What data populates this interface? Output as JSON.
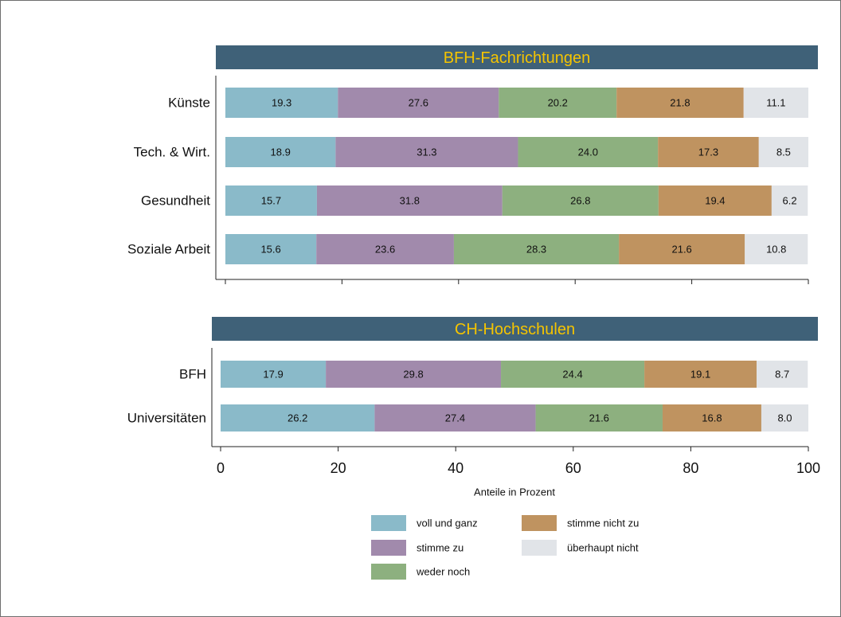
{
  "chart_data": [
    {
      "type": "bar",
      "orientation": "horizontal",
      "stacked": true,
      "title": "BFH-Fachrichtungen",
      "categories": [
        "Künste",
        "Tech. & Wirt.",
        "Gesundheit",
        "Soziale Arbeit"
      ],
      "series": [
        {
          "name": "voll und ganz",
          "values": [
            19.3,
            18.9,
            15.7,
            15.6
          ]
        },
        {
          "name": "stimme zu",
          "values": [
            27.6,
            31.3,
            31.8,
            23.6
          ]
        },
        {
          "name": "weder noch",
          "values": [
            20.2,
            24.0,
            26.8,
            28.3
          ]
        },
        {
          "name": "stimme nicht zu",
          "values": [
            21.8,
            17.3,
            19.4,
            21.6
          ]
        },
        {
          "name": "überhaupt nicht",
          "values": [
            11.1,
            8.5,
            6.2,
            10.8
          ]
        }
      ],
      "xlim": [
        0,
        100
      ]
    },
    {
      "type": "bar",
      "orientation": "horizontal",
      "stacked": true,
      "title": "CH-Hochschulen",
      "categories": [
        "BFH",
        "Universitäten"
      ],
      "series": [
        {
          "name": "voll und ganz",
          "values": [
            17.9,
            26.2
          ]
        },
        {
          "name": "stimme zu",
          "values": [
            29.8,
            27.4
          ]
        },
        {
          "name": "weder noch",
          "values": [
            24.4,
            21.6
          ]
        },
        {
          "name": "stimme nicht zu",
          "values": [
            19.1,
            16.8
          ]
        },
        {
          "name": "überhaupt nicht",
          "values": [
            8.7,
            8.0
          ]
        }
      ],
      "xlim": [
        0,
        100
      ],
      "xticks": [
        "0",
        "20",
        "40",
        "60",
        "80",
        "100"
      ],
      "xlabel": "Anteile in Prozent"
    }
  ],
  "legend": {
    "placement": "bottom",
    "items": [
      {
        "label": "voll und ganz",
        "color": "#8abac9"
      },
      {
        "label": "stimme nicht zu",
        "color": "#bf9360"
      },
      {
        "label": "stimme zu",
        "color": "#a18aac"
      },
      {
        "label": "überhaupt nicht",
        "color": "#e1e4e8"
      },
      {
        "label": "weder noch",
        "color": "#8db07f"
      }
    ]
  },
  "colors": {
    "series": [
      "#8abac9",
      "#a18aac",
      "#8db07f",
      "#bf9360",
      "#e1e4e8"
    ],
    "title_bar": "#3f6178",
    "title_text": "#f5c400"
  }
}
